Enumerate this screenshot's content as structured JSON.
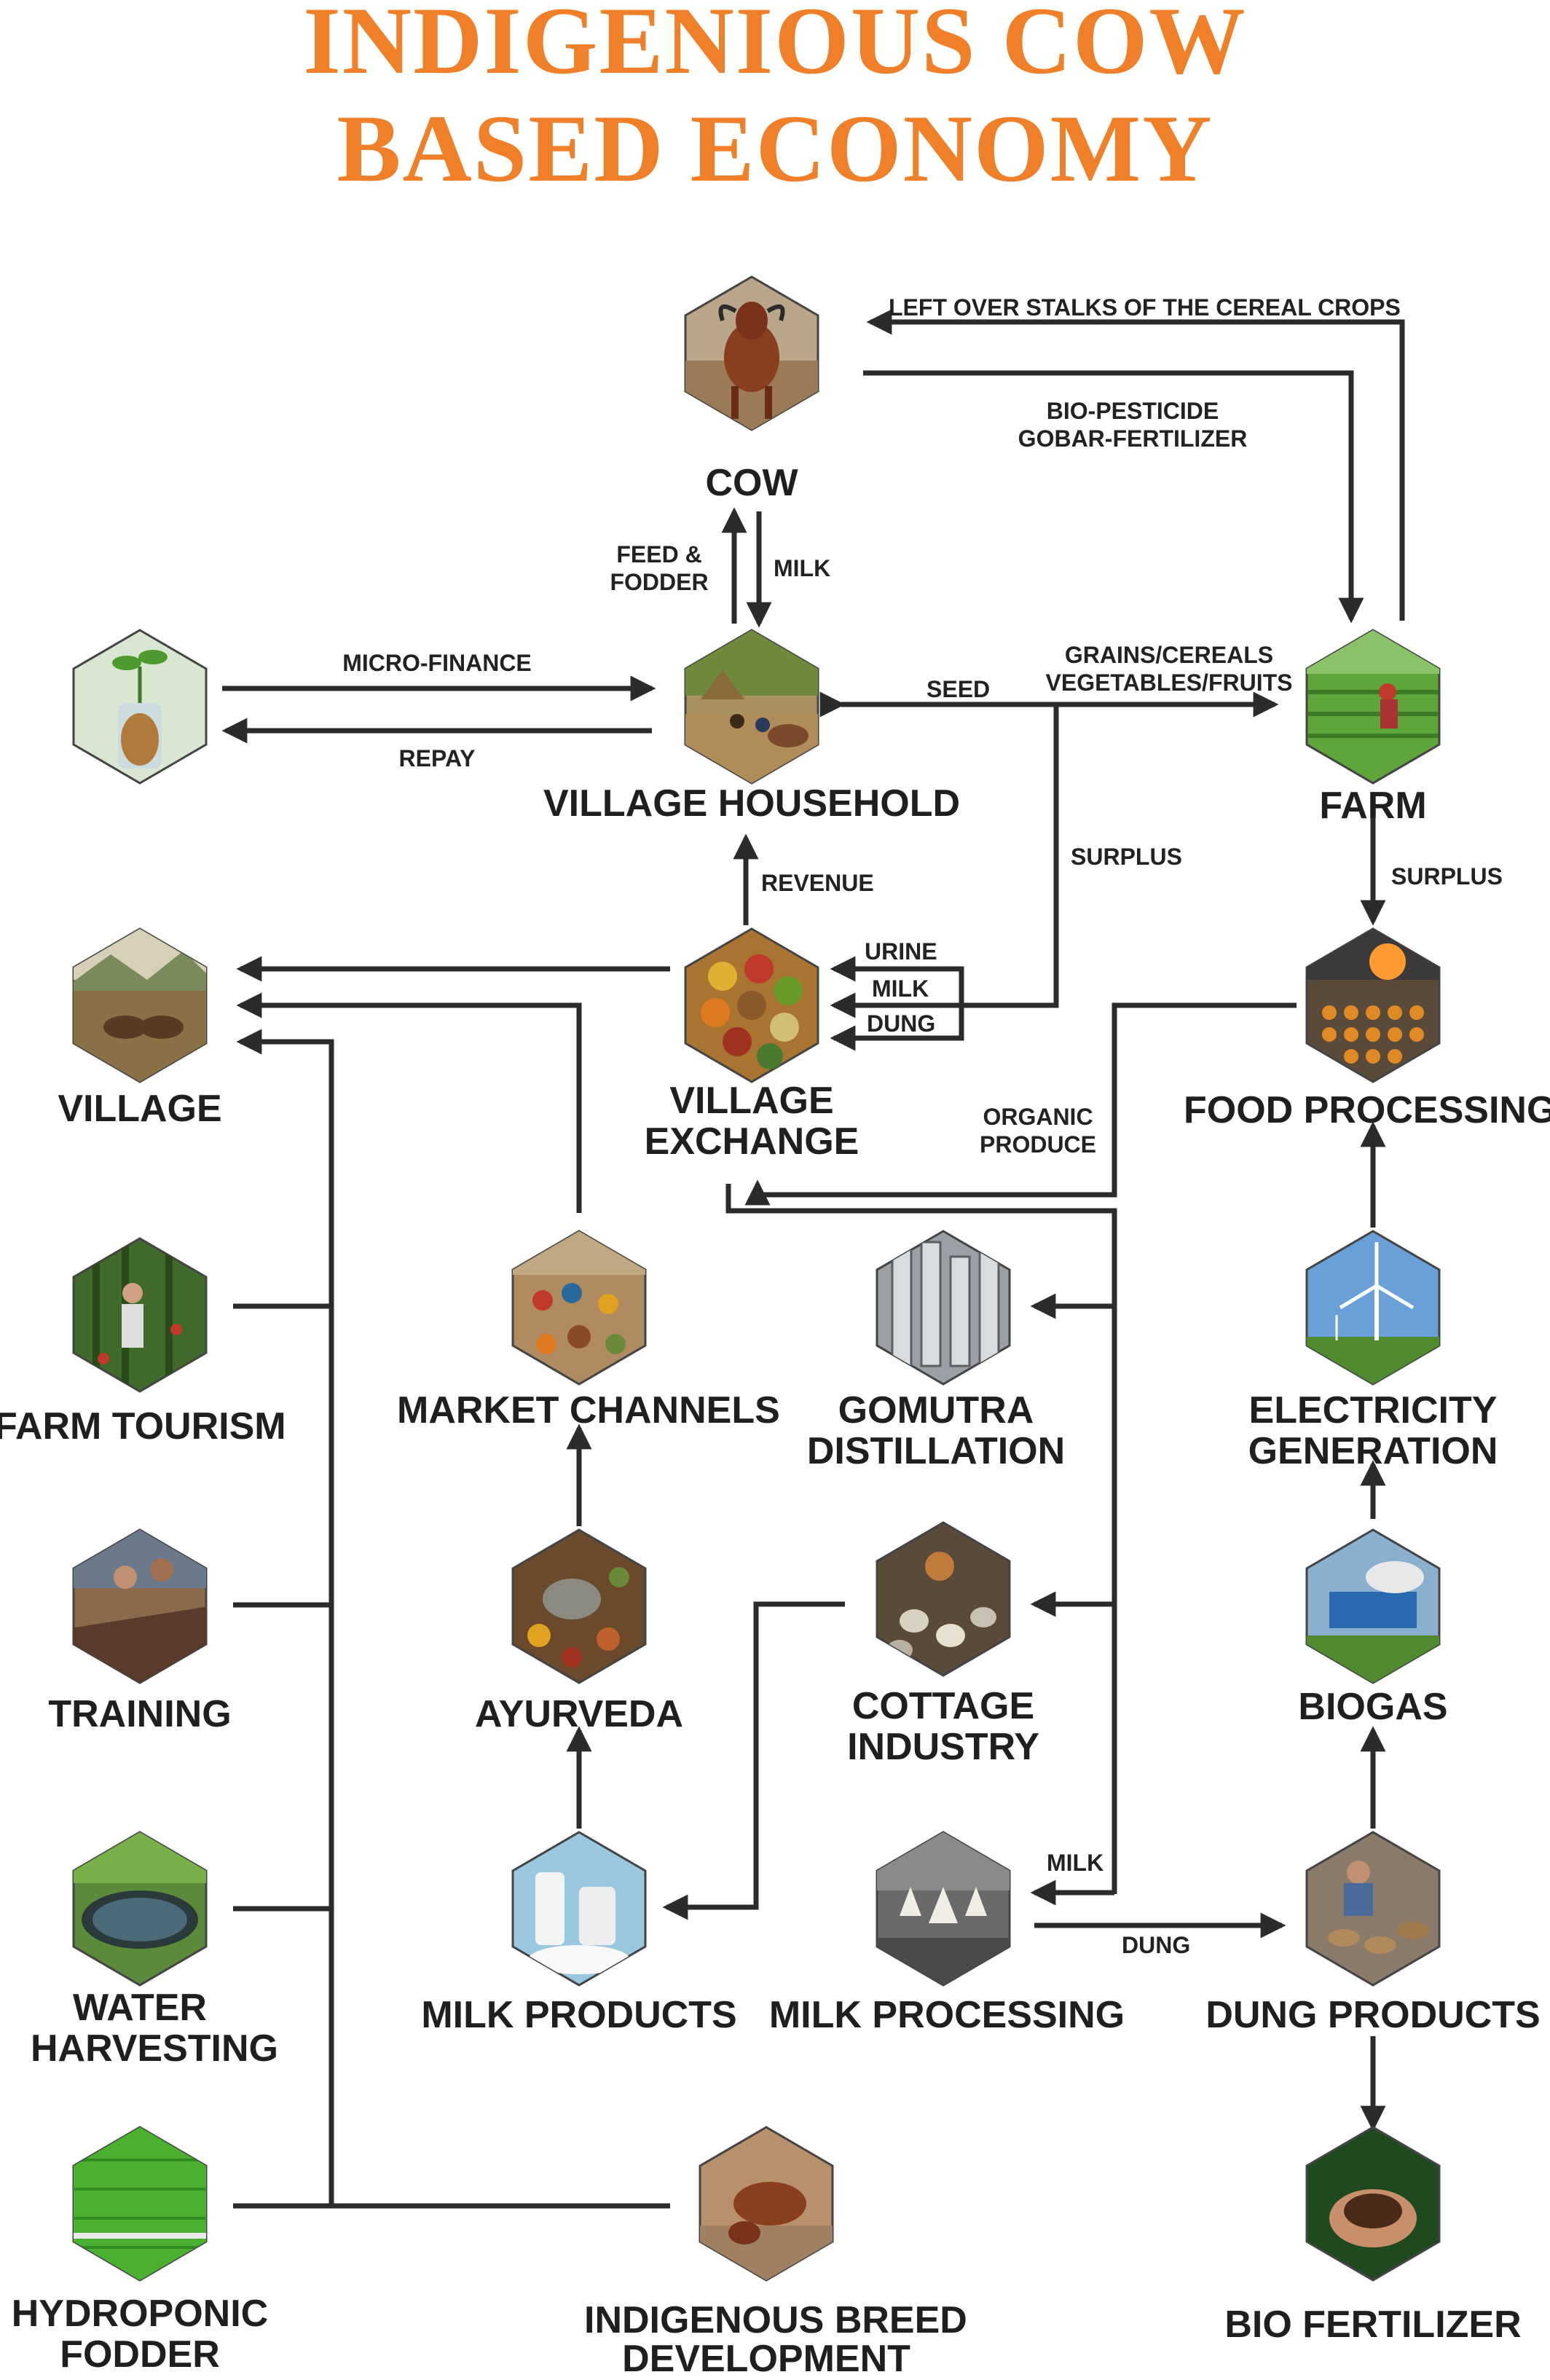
{
  "title": {
    "line1": "INDIGENIOUS COW",
    "line2": "BASED ECONOMY"
  },
  "colors": {
    "title": "#f07f2a",
    "lines": "#2b2b2b",
    "text": "#1f1f1f"
  },
  "nodes": {
    "cow": "COW",
    "village_household": "VILLAGE HOUSEHOLD",
    "farm": "FARM",
    "village_exchange": [
      "VILLAGE",
      "EXCHANGE"
    ],
    "village": "VILLAGE",
    "food_processing": "FOOD PROCESSING",
    "farm_tourism": "FARM TOURISM",
    "market_channels": "MARKET CHANNELS",
    "gomutra_distillation": [
      "GOMUTRA",
      "DISTILLATION"
    ],
    "electricity_generation": [
      "ELECTRICITY",
      "GENERATION"
    ],
    "training": "TRAINING",
    "ayurveda": "AYURVEDA",
    "cottage_industry": [
      "COTTAGE",
      "INDUSTRY"
    ],
    "biogas": "BIOGAS",
    "water_harvesting": [
      "WATER",
      "HARVESTING"
    ],
    "milk_products": "MILK PRODUCTS",
    "milk_processing": "MILK PROCESSING",
    "dung_products": "DUNG PRODUCTS",
    "hydroponic_fodder": [
      "HYDROPONIC",
      "FODDER"
    ],
    "indigenous_breed_development": [
      "INDIGENOUS BREED",
      "DEVELOPMENT"
    ],
    "bio_fertilizer": "BIO FERTILIZER"
  },
  "edges": {
    "left_over_stalks": "LEFT OVER STALKS OF THE CEREAL CROPS",
    "bio_pesticide": [
      "BIO-PESTICIDE",
      "GOBAR-FERTILIZER"
    ],
    "feed_fodder": [
      "FEED &",
      "FODDER"
    ],
    "milk_up": "MILK",
    "micro_finance": "MICRO-FINANCE",
    "repay": "REPAY",
    "seed": "SEED",
    "grains": [
      "GRAINS/CEREALS",
      "VEGETABLES/FRUITS"
    ],
    "surplus_mid": "SURPLUS",
    "surplus_right": "SURPLUS",
    "revenue": "REVENUE",
    "urine": "URINE",
    "milk_ex": "MILK",
    "dung_ex": "DUNG",
    "organic_produce": [
      "ORGANIC",
      "PRODUCE"
    ],
    "milk_proc": "MILK",
    "dung_proc": "DUNG"
  },
  "icons": {
    "cow": "cow-photo-icon",
    "micro_finance": "coin-plant-icon",
    "village_household": "household-photo-icon",
    "farm": "farm-photo-icon",
    "village": "village-photo-icon",
    "village_exchange": "exchange-photo-icon",
    "food_processing": "food-processing-icon",
    "farm_tourism": "farm-tourism-icon",
    "market_channels": "market-icon",
    "gomutra_distillation": "distillation-icon",
    "electricity_generation": "wind-turbine-icon",
    "training": "training-icon",
    "ayurveda": "ayurveda-icon",
    "cottage_industry": "cottage-icon",
    "biogas": "biogas-icon",
    "water_harvesting": "water-harvesting-icon",
    "milk_products": "milk-products-icon",
    "milk_processing": "milk-processing-icon",
    "dung_products": "dung-products-icon",
    "hydroponic_fodder": "hydroponic-icon",
    "indigenous_breed_development": "breed-icon",
    "bio_fertilizer": "fertilizer-icon"
  }
}
